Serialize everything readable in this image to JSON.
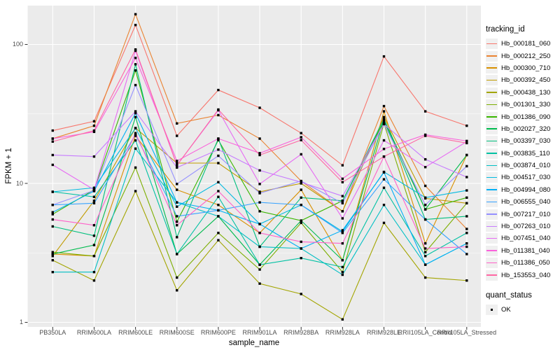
{
  "figure": {
    "bg": "#FFFFFF",
    "panel_bg": "#EBEBEB",
    "grid_major_color": "#FFFFFF",
    "grid_minor_color": "#FFFFFF",
    "tick_mark_color": "#333333",
    "tick_label_color": "#4D4D4D",
    "point_color": "#000000"
  },
  "legend": {
    "tracking_title": "tracking_id",
    "quant_title": "quant_status",
    "quant_items": [
      "OK"
    ]
  },
  "chart_data": {
    "type": "line",
    "title": "",
    "xlabel": "sample_name",
    "ylabel": "FPKM + 1",
    "y_scale": "log10",
    "yticks": [
      1,
      10,
      100
    ],
    "ytick_labels": [
      "1",
      "10",
      "100"
    ],
    "ylim": [
      1,
      190
    ],
    "grid": true,
    "legend_position": "right",
    "point_marker": "filled-black-square",
    "categories": [
      "PB350LA",
      "RRIM600LA",
      "RRIM600LE",
      "RRIM600SE",
      "RRIM600PE",
      "RRIM901LA",
      "RRIM928BA",
      "RRIM928LA",
      "RRIM928LE",
      "RRII105LA_Control",
      "RRII105LA_Stressed"
    ],
    "series": [
      {
        "name": "Hb_000181_060",
        "color": "#F8766D",
        "values": [
          24,
          28,
          138,
          22,
          47,
          35,
          23,
          13.5,
          82,
          33,
          26
        ]
      },
      {
        "name": "Hb_000212_250",
        "color": "#EA8331",
        "values": [
          21,
          26,
          165,
          27,
          31,
          21,
          10.4,
          6.3,
          36,
          9.6,
          4.7
        ]
      },
      {
        "name": "Hb_000300_710",
        "color": "#D89000",
        "values": [
          3.1,
          3.0,
          22,
          9.0,
          7.0,
          4.4,
          9.0,
          2.8,
          33,
          3.7,
          16
        ]
      },
      {
        "name": "Hb_000392_450",
        "color": "#C09B00",
        "values": [
          3.0,
          7.5,
          25,
          14,
          14,
          8.7,
          10,
          6.3,
          30,
          7.8,
          7.2
        ]
      },
      {
        "name": "Hb_000438_130",
        "color": "#A3A500",
        "values": [
          2.8,
          2.0,
          8.8,
          1.7,
          3.9,
          1.9,
          1.6,
          1.05,
          5.2,
          2.1,
          2.0
        ]
      },
      {
        "name": "Hb_001301_330",
        "color": "#7CAE00",
        "values": [
          3.2,
          3.0,
          13,
          2.1,
          4.4,
          2.4,
          5.2,
          2.3,
          27,
          3.2,
          7.2
        ]
      },
      {
        "name": "Hb_001386_090",
        "color": "#39B600",
        "values": [
          6.0,
          9.0,
          65,
          5.3,
          20.5,
          6.3,
          5.4,
          7.5,
          28,
          6.5,
          7.9
        ]
      },
      {
        "name": "Hb_002027_320",
        "color": "#00BB4E",
        "values": [
          3.1,
          3.6,
          30,
          3.1,
          5.8,
          2.6,
          5.4,
          2.8,
          29,
          6.5,
          16
        ]
      },
      {
        "name": "Hb_003397_030",
        "color": "#00BF7D",
        "values": [
          4.9,
          4.2,
          72,
          4.1,
          21,
          3.5,
          7.9,
          7.5,
          29,
          5.5,
          5.8
        ]
      },
      {
        "name": "Hb_003835_110",
        "color": "#00C1A3",
        "values": [
          8.7,
          8.0,
          20.4,
          3.1,
          8.0,
          2.6,
          2.9,
          2.5,
          9.3,
          3.0,
          4.4
        ]
      },
      {
        "name": "Hb_003874_010",
        "color": "#00BFC4",
        "values": [
          2.3,
          2.3,
          17.8,
          7.3,
          5.8,
          3.5,
          3.4,
          2.2,
          7.0,
          2.6,
          3.7
        ]
      },
      {
        "name": "Hb_004517_030",
        "color": "#00BAE0",
        "values": [
          8.7,
          9.3,
          25,
          6.8,
          10.2,
          5.1,
          7.0,
          4.5,
          12.1,
          7.9,
          8.9
        ]
      },
      {
        "name": "Hb_004994_080",
        "color": "#00B0F6",
        "values": [
          6.2,
          8.8,
          32,
          7.3,
          6.4,
          5.1,
          3.4,
          4.6,
          12,
          2.6,
          3.7
        ]
      },
      {
        "name": "Hb_006555_040",
        "color": "#35A2FF",
        "values": [
          7.0,
          7.2,
          22.4,
          5.8,
          6.4,
          7.3,
          7.0,
          4.4,
          10.7,
          5.5,
          3.1
        ]
      },
      {
        "name": "Hb_007217_010",
        "color": "#9590FF",
        "values": [
          7.0,
          8.9,
          51,
          9.9,
          15.8,
          8.5,
          10.4,
          7.2,
          26.7,
          7.0,
          13.3
        ]
      },
      {
        "name": "Hb_007263_010",
        "color": "#C77CFF",
        "values": [
          16,
          15.6,
          33,
          13,
          17.5,
          12.4,
          10.2,
          8.1,
          26.7,
          14.9,
          11.1
        ]
      },
      {
        "name": "Hb_007451_040",
        "color": "#E76BF3",
        "values": [
          13.6,
          9.0,
          90,
          13.5,
          33.6,
          9.9,
          16.2,
          5.6,
          20.4,
          13.1,
          20
        ]
      },
      {
        "name": "Hb_011381_040",
        "color": "#FA62DB",
        "values": [
          21,
          23.5,
          80,
          14.5,
          21,
          16.5,
          21.5,
          10.8,
          17.7,
          22.4,
          20.2
        ]
      },
      {
        "name": "Hb_011386_050",
        "color": "#FF61C9",
        "values": [
          5.5,
          5.0,
          23,
          5.0,
          8.8,
          4.4,
          3.8,
          3.7,
          15.6,
          3.4,
          3.5
        ]
      },
      {
        "name": "Hb_153553_040",
        "color": "#FF67A4",
        "values": [
          20,
          24,
          92,
          13.5,
          34,
          16,
          20.5,
          10.2,
          15.6,
          22,
          19.5
        ]
      }
    ]
  }
}
